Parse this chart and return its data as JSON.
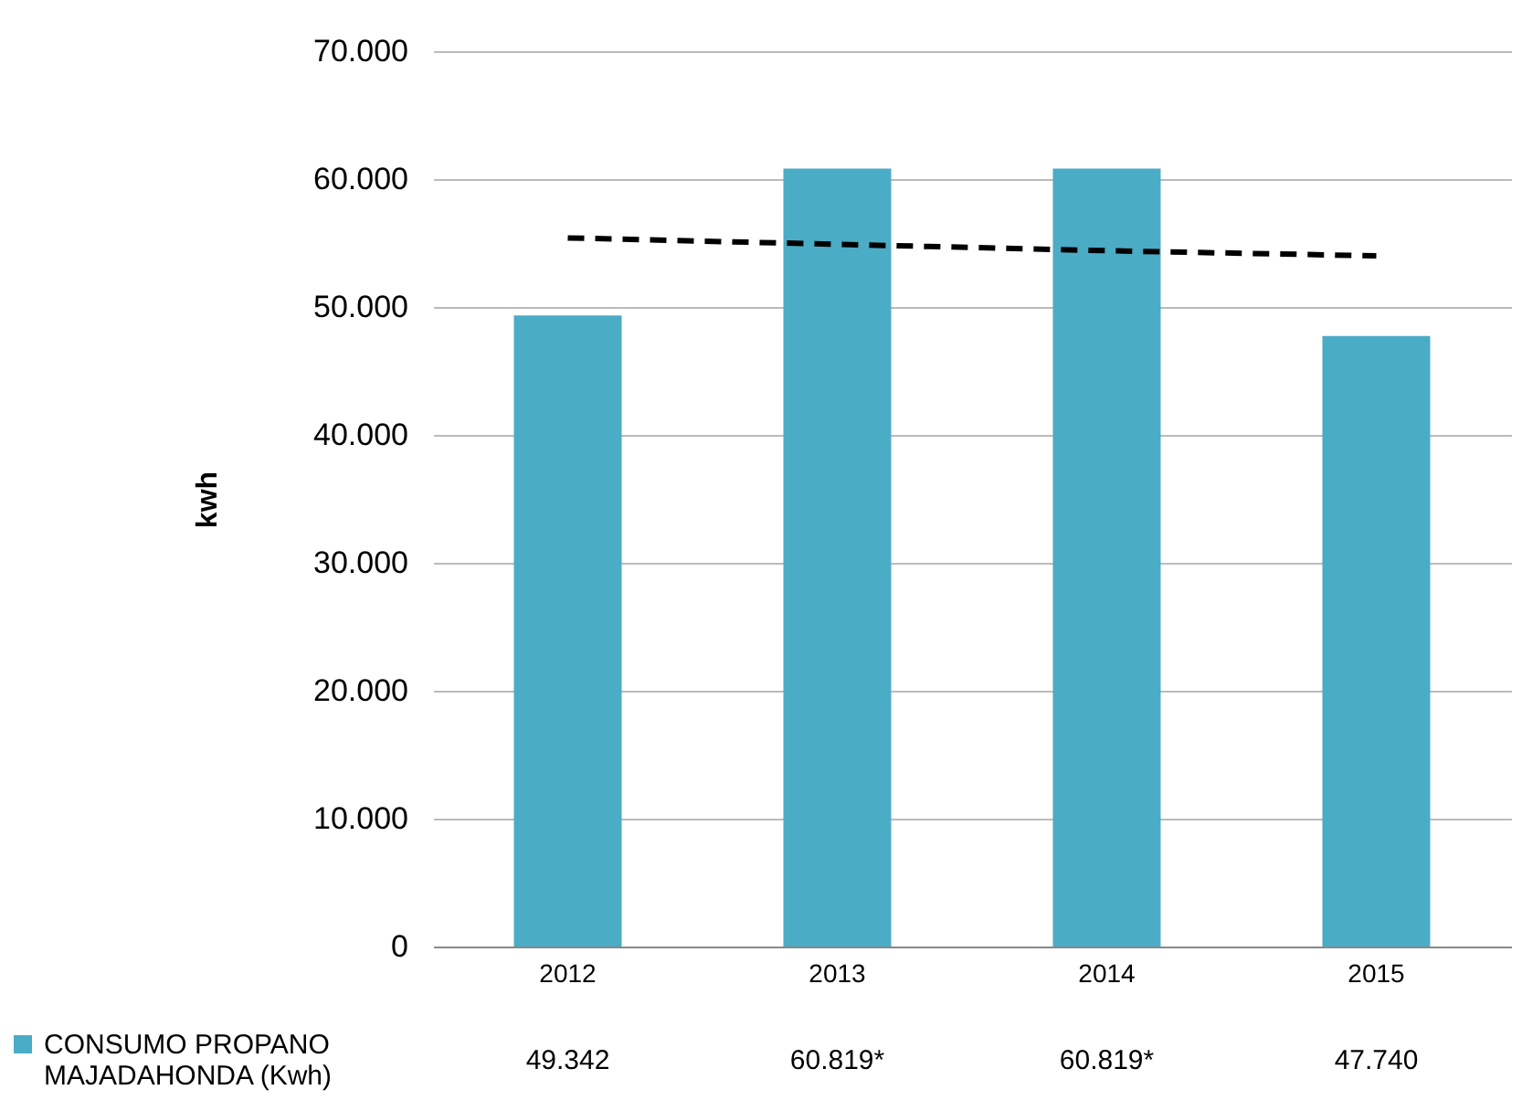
{
  "chart_data": {
    "type": "bar",
    "ylabel": "kwh",
    "categories": [
      "2012",
      "2013",
      "2014",
      "2015"
    ],
    "series": [
      {
        "name": "CONSUMO PROPANO MAJADAHONDA (Kwh)",
        "color": "#4bacc6",
        "values": [
          49342,
          60819,
          60819,
          47740
        ],
        "value_labels": [
          "49.342",
          "60.819*",
          "60.819*",
          "47.740"
        ]
      },
      {
        "type": "line",
        "color": "#000000",
        "line_style": "dashed",
        "values": [
          55400,
          54900,
          54400,
          54000
        ]
      }
    ],
    "ylim": [
      0,
      70000
    ],
    "yticks": [
      {
        "value": 0,
        "label": "0"
      },
      {
        "value": 10000,
        "label": "10.000"
      },
      {
        "value": 20000,
        "label": "20.000"
      },
      {
        "value": 30000,
        "label": "30.000"
      },
      {
        "value": 40000,
        "label": "40.000"
      },
      {
        "value": 50000,
        "label": "50.000"
      },
      {
        "value": 60000,
        "label": "60.000"
      },
      {
        "value": 70000,
        "label": "70.000"
      }
    ],
    "grid": "y",
    "legend": "bottom left",
    "marker": "none"
  }
}
